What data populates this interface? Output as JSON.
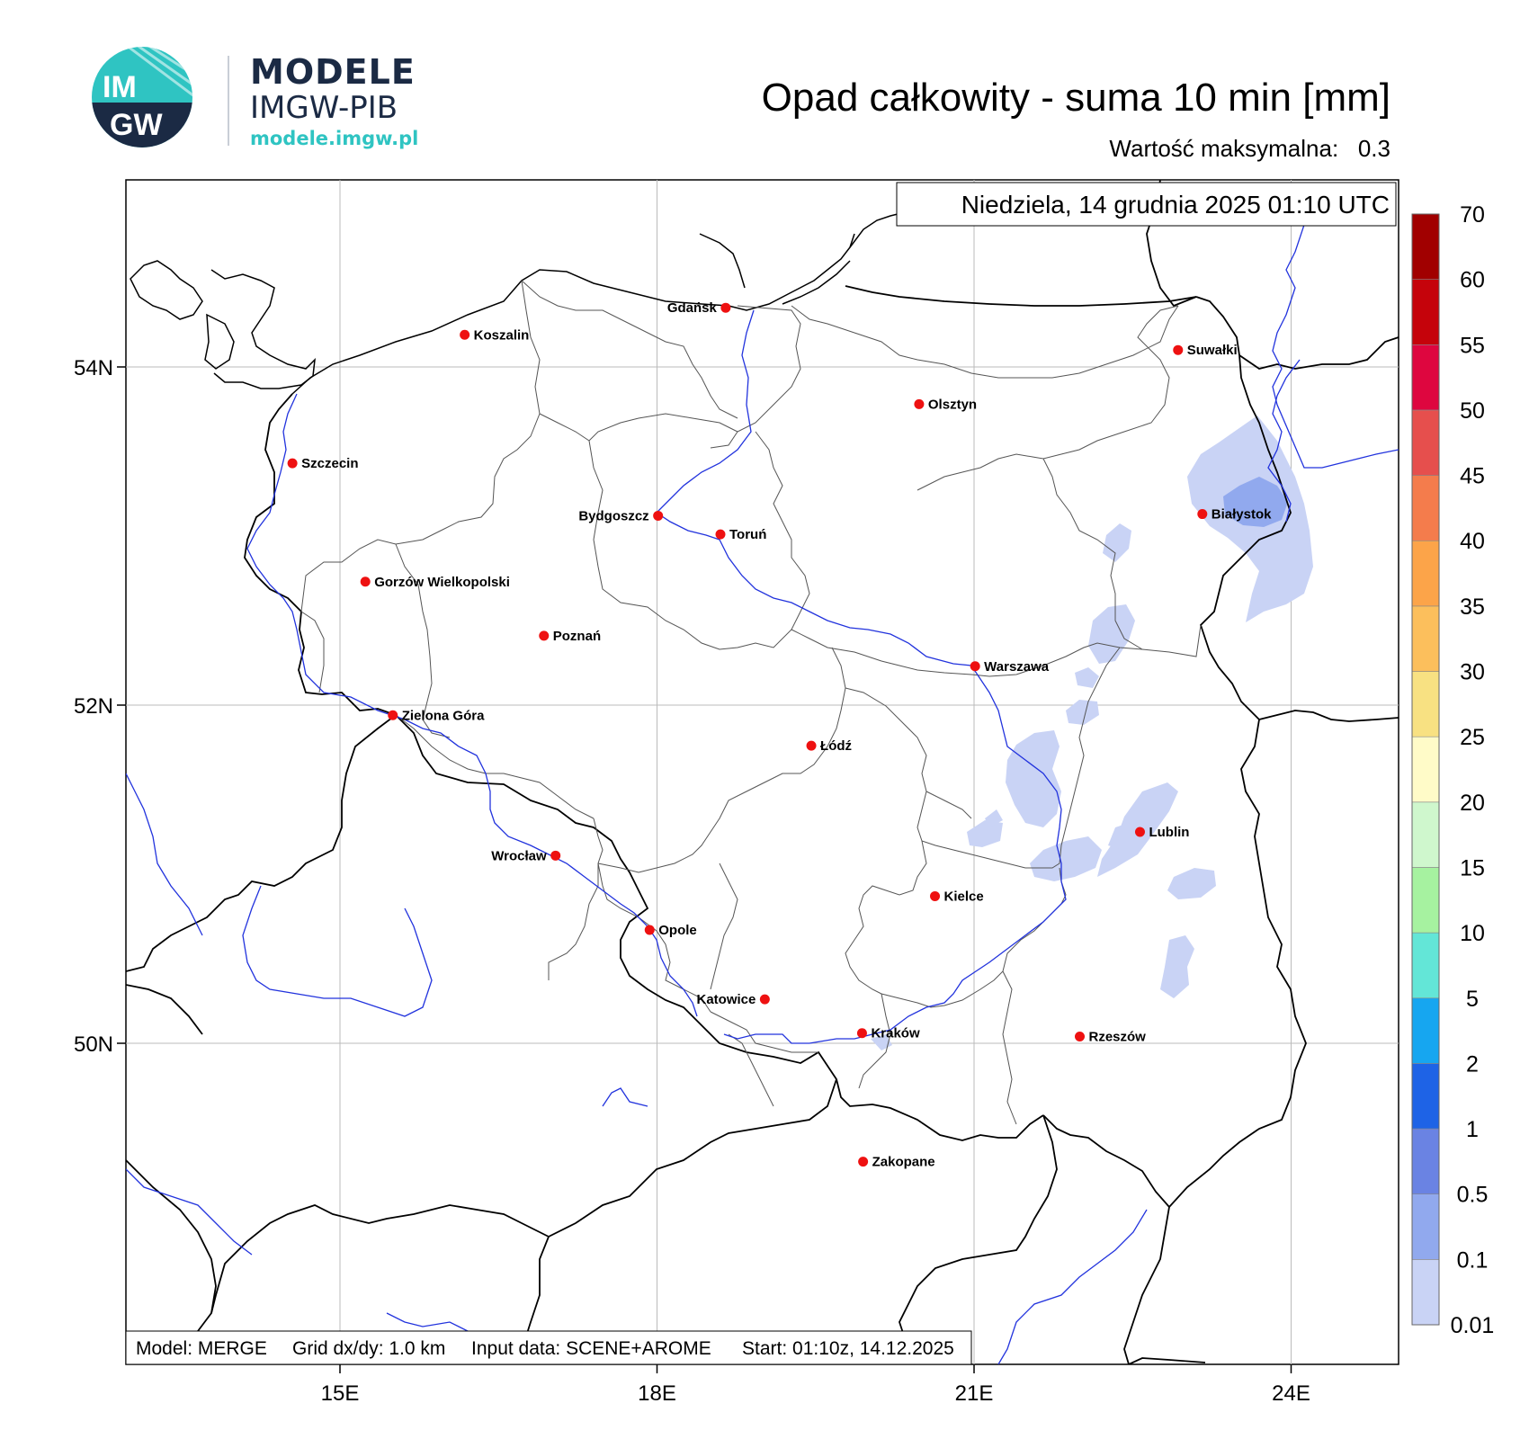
{
  "logo": {
    "badge_top": "IM",
    "badge_bottom": "GW",
    "line1": "MODELE",
    "line2": "IMGW-PIB",
    "line3": "modele.imgw.pl"
  },
  "title": "Opad całkowity - suma 10 min [mm]",
  "max_label": "Wartość maksymalna:",
  "max_value": "0.3",
  "date": "Niedziela, 14 grudnia 2025 01:10 UTC",
  "info": {
    "model": "Model: MERGE",
    "grid": "Grid dx/dy: 1.0 km",
    "input": "Input data: SCENE+AROME",
    "start": "Start: 01:10z, 14.12.2025"
  },
  "lon_ticks": [
    "15E",
    "18E",
    "21E",
    "24E"
  ],
  "lat_ticks": [
    "54N",
    "52N",
    "50N"
  ],
  "cities": [
    {
      "name": "Gdańsk",
      "lon": 18.65,
      "lat": 54.35,
      "align": "left"
    },
    {
      "name": "Koszalin",
      "lon": 16.18,
      "lat": 54.19,
      "align": "right"
    },
    {
      "name": "Suwałki",
      "lon": 22.93,
      "lat": 54.1,
      "align": "right"
    },
    {
      "name": "Olsztyn",
      "lon": 20.48,
      "lat": 53.78,
      "align": "right"
    },
    {
      "name": "Szczecin",
      "lon": 14.55,
      "lat": 53.43,
      "align": "right"
    },
    {
      "name": "Białystok",
      "lon": 23.16,
      "lat": 53.13,
      "align": "right"
    },
    {
      "name": "Bydgoszcz",
      "lon": 18.01,
      "lat": 53.12,
      "align": "left"
    },
    {
      "name": "Toruń",
      "lon": 18.6,
      "lat": 53.01,
      "align": "right"
    },
    {
      "name": "Gorzów Wielkopolski",
      "lon": 15.24,
      "lat": 52.73,
      "align": "right"
    },
    {
      "name": "Poznań",
      "lon": 16.93,
      "lat": 52.41,
      "align": "right"
    },
    {
      "name": "Warszawa",
      "lon": 21.01,
      "lat": 52.23,
      "align": "right"
    },
    {
      "name": "Zielona Góra",
      "lon": 15.5,
      "lat": 51.94,
      "align": "right"
    },
    {
      "name": "Łódź",
      "lon": 19.46,
      "lat": 51.76,
      "align": "right"
    },
    {
      "name": "Lublin",
      "lon": 22.57,
      "lat": 51.25,
      "align": "right"
    },
    {
      "name": "Wrocław",
      "lon": 17.04,
      "lat": 51.11,
      "align": "left"
    },
    {
      "name": "Kielce",
      "lon": 20.63,
      "lat": 50.87,
      "align": "right"
    },
    {
      "name": "Opole",
      "lon": 17.93,
      "lat": 50.67,
      "align": "right"
    },
    {
      "name": "Katowice",
      "lon": 19.02,
      "lat": 50.26,
      "align": "left"
    },
    {
      "name": "Rzeszów",
      "lon": 22.0,
      "lat": 50.04,
      "align": "right"
    },
    {
      "name": "Kraków",
      "lon": 19.94,
      "lat": 50.06,
      "align": "right"
    },
    {
      "name": "Zakopane",
      "lon": 19.95,
      "lat": 49.3,
      "align": "right"
    }
  ],
  "colorbar": {
    "levels": [
      "0.01",
      "0.1",
      "0.5",
      "1",
      "2",
      "5",
      "10",
      "15",
      "20",
      "25",
      "30",
      "35",
      "40",
      "45",
      "50",
      "55",
      "60",
      "70"
    ],
    "colors": [
      "#c9d3f5",
      "#91a9ee",
      "#6a83e3",
      "#1e63e6",
      "#16a6f0",
      "#63e6d7",
      "#a6f2a0",
      "#cff7cd",
      "#fffbc8",
      "#f8e182",
      "#fcbf5c",
      "#fca449",
      "#f47c4c",
      "#e64f4d",
      "#de063f",
      "#c5030b",
      "#a10000"
    ]
  },
  "map_colors": {
    "border": "#000000",
    "province": "#555555",
    "river": "#2233dd",
    "grid": "#bbbbbb",
    "city": "#ee1111",
    "rain_light": "#c9d3f5",
    "rain_medium": "#91a9ee"
  }
}
